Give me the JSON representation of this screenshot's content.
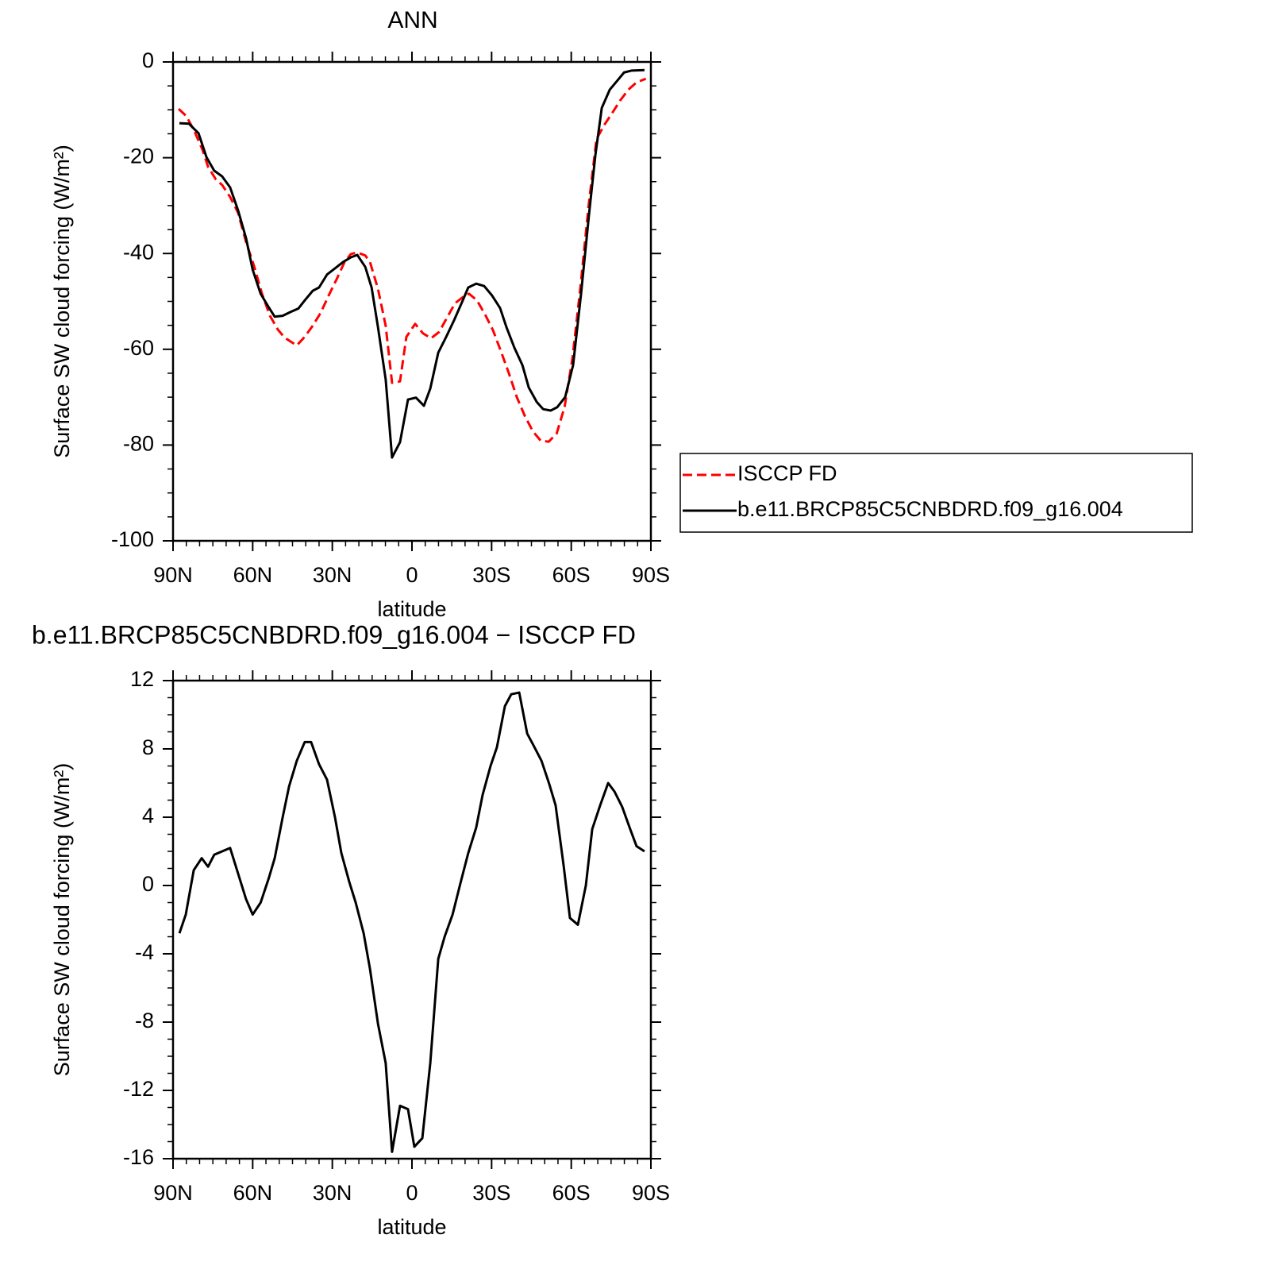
{
  "chart_data": [
    {
      "type": "line",
      "title": "ANN",
      "xlabel": "latitude",
      "ylabel": "Surface SW cloud forcing (W/m²)",
      "xlim": [
        90,
        -90
      ],
      "xticks": [
        {
          "value": 90,
          "label": "90N"
        },
        {
          "value": 60,
          "label": "60N"
        },
        {
          "value": 30,
          "label": "30N"
        },
        0,
        {
          "value": -30,
          "label": "30S"
        },
        {
          "value": -60,
          "label": "60S"
        },
        {
          "value": -90,
          "label": "90S"
        }
      ],
      "ylim": [
        -100,
        0
      ],
      "yticks": [
        0,
        -20,
        -40,
        -60,
        -80,
        -100
      ],
      "legend": "outside-right",
      "series": [
        {
          "name": "ISCCP FD",
          "color": "#ff0000",
          "dashed": true,
          "x": [
            87.9,
            85,
            82,
            79,
            76.8,
            73.9,
            71.5,
            68.5,
            65.5,
            62.5,
            59.5,
            56.5,
            53.5,
            50.5,
            48.1,
            45.7,
            43.4,
            40.4,
            37.4,
            34.4,
            31.4,
            28.4,
            25.4,
            23,
            20.6,
            17.6,
            15.8,
            12.8,
            9.9,
            7.5,
            4.5,
            2.1,
            -1.2,
            -4.2,
            -7.2,
            -10.2,
            -13.2,
            -16.2,
            -19.2,
            -21.5,
            -24.5,
            -27.5,
            -30.5,
            -33.5,
            -36.5,
            -39.5,
            -42.5,
            -45.5,
            -48.5,
            -51.5,
            -54.5,
            -57.5,
            -60.5,
            -63.5,
            -66.5,
            -69.5,
            -72.5,
            -75.5,
            -78.5,
            -81.5,
            -84.5,
            -88.1
          ],
          "values": [
            -9.8,
            -11.3,
            -14.4,
            -18.2,
            -21.9,
            -24.5,
            -25.7,
            -28.2,
            -31.5,
            -37.6,
            -42.6,
            -48.4,
            -53,
            -55.9,
            -57.5,
            -58.4,
            -59.2,
            -57.4,
            -55.1,
            -52.4,
            -48.8,
            -45.4,
            -41.8,
            -40.1,
            -39.8,
            -40.4,
            -41.8,
            -47.4,
            -55.1,
            -67,
            -66.7,
            -57.4,
            -54.7,
            -56.7,
            -57.7,
            -56.4,
            -53.4,
            -50.4,
            -49.1,
            -48.4,
            -49.8,
            -52.7,
            -56,
            -60.4,
            -65,
            -70,
            -73.9,
            -77.1,
            -79.1,
            -79.3,
            -77.6,
            -72,
            -61.7,
            -46.8,
            -30.2,
            -16.1,
            -13.1,
            -10.6,
            -8,
            -5.8,
            -4.3,
            -3.5
          ]
        },
        {
          "name": "b.e11.BRCP85C5CNBDRD.f09_g16.004",
          "color": "#000000",
          "dashed": false,
          "x": [
            87.6,
            84,
            80.4,
            77.4,
            74.5,
            71.5,
            68.5,
            65.5,
            62.5,
            60,
            57,
            54,
            51.7,
            48.7,
            45.7,
            42.8,
            40.4,
            37.4,
            35,
            32,
            29,
            26,
            23,
            20.6,
            17.6,
            15.2,
            12.8,
            9.9,
            7.5,
            4.5,
            1.5,
            -1.5,
            -4.5,
            -6.9,
            -9.9,
            -12.9,
            -15.9,
            -18.9,
            -21.2,
            -24.2,
            -27.2,
            -30.2,
            -33.2,
            -35.6,
            -38.6,
            -41.6,
            -44,
            -47,
            -49.4,
            -52.3,
            -54.7,
            -57.7,
            -60.7,
            -63.7,
            -66.7,
            -69.1,
            -71.5,
            -74.5,
            -77.5,
            -79.9,
            -82.8,
            -87.6
          ],
          "values": [
            -12.8,
            -12.9,
            -14.9,
            -19.9,
            -22.7,
            -23.9,
            -26.2,
            -31,
            -36.8,
            -43.4,
            -48.4,
            -51.2,
            -53.2,
            -53,
            -52.2,
            -51.5,
            -49.8,
            -47.8,
            -47.1,
            -44.4,
            -43.1,
            -41.8,
            -40.8,
            -40.3,
            -42.8,
            -47.1,
            -55.4,
            -66.3,
            -82.6,
            -79.4,
            -70.5,
            -70.1,
            -71.8,
            -68.2,
            -60.7,
            -57.4,
            -53.9,
            -50.1,
            -47.1,
            -46.3,
            -46.8,
            -48.8,
            -51.4,
            -55.4,
            -59.7,
            -63.3,
            -68,
            -71,
            -72.5,
            -72.8,
            -72.1,
            -70,
            -63.3,
            -48.4,
            -31.8,
            -19.4,
            -9.6,
            -5.8,
            -3.8,
            -2.2,
            -1.8,
            -1.7
          ]
        }
      ]
    },
    {
      "type": "line",
      "title": "b.e11.BRCP85C5CNBDRD.f09_g16.004 − ISCCP FD",
      "xlabel": "latitude",
      "ylabel": "Surface SW cloud forcing (W/m²)",
      "xlim": [
        90,
        -90
      ],
      "xticks": [
        {
          "value": 90,
          "label": "90N"
        },
        {
          "value": 60,
          "label": "60N"
        },
        {
          "value": 30,
          "label": "30N"
        },
        0,
        {
          "value": -30,
          "label": "30S"
        },
        {
          "value": -60,
          "label": "60S"
        },
        {
          "value": -90,
          "label": "90S"
        }
      ],
      "ylim": [
        -16,
        12
      ],
      "yticks": [
        12,
        8,
        4,
        0,
        -4,
        -8,
        -12,
        -16
      ],
      "series": [
        {
          "color": "#000000",
          "dashed": false,
          "x": [
            87.6,
            85.2,
            82.2,
            79.2,
            76.8,
            74.5,
            71.5,
            68.5,
            65.5,
            62.5,
            60,
            57,
            54,
            51.7,
            48.7,
            46.3,
            43.4,
            40.4,
            38,
            35,
            32,
            29,
            26.6,
            23.6,
            21.2,
            18.2,
            15.8,
            12.8,
            9.9,
            7.5,
            4.5,
            1.5,
            -0.9,
            -3.9,
            -6.9,
            -9.9,
            -12.3,
            -15.3,
            -18.2,
            -21.2,
            -24.2,
            -26.6,
            -29.6,
            -32,
            -35,
            -37.4,
            -40.4,
            -43.4,
            -45.8,
            -48.8,
            -51.8,
            -54.1,
            -57.1,
            -59.5,
            -62.5,
            -65.5,
            -67.9,
            -70.9,
            -73.9,
            -76.3,
            -79.2,
            -82.2,
            -84.6,
            -87.6
          ],
          "values": [
            -2.8,
            -1.7,
            0.9,
            1.6,
            1.1,
            1.8,
            2,
            2.2,
            0.7,
            -0.8,
            -1.7,
            -1,
            0.4,
            1.6,
            4,
            5.8,
            7.3,
            8.4,
            8.4,
            7.1,
            6.2,
            4,
            1.9,
            0.2,
            -1,
            -2.8,
            -4.9,
            -8.1,
            -10.4,
            -15.6,
            -12.9,
            -13.1,
            -15.3,
            -14.8,
            -10.4,
            -4.3,
            -3,
            -1.7,
            0.1,
            1.9,
            3.4,
            5.3,
            7,
            8.1,
            10.5,
            11.2,
            11.3,
            8.9,
            8.2,
            7.3,
            5.9,
            4.7,
            1.2,
            -1.9,
            -2.3,
            0,
            3.3,
            4.7,
            6,
            5.5,
            4.6,
            3.3,
            2.3,
            2
          ]
        }
      ]
    }
  ]
}
